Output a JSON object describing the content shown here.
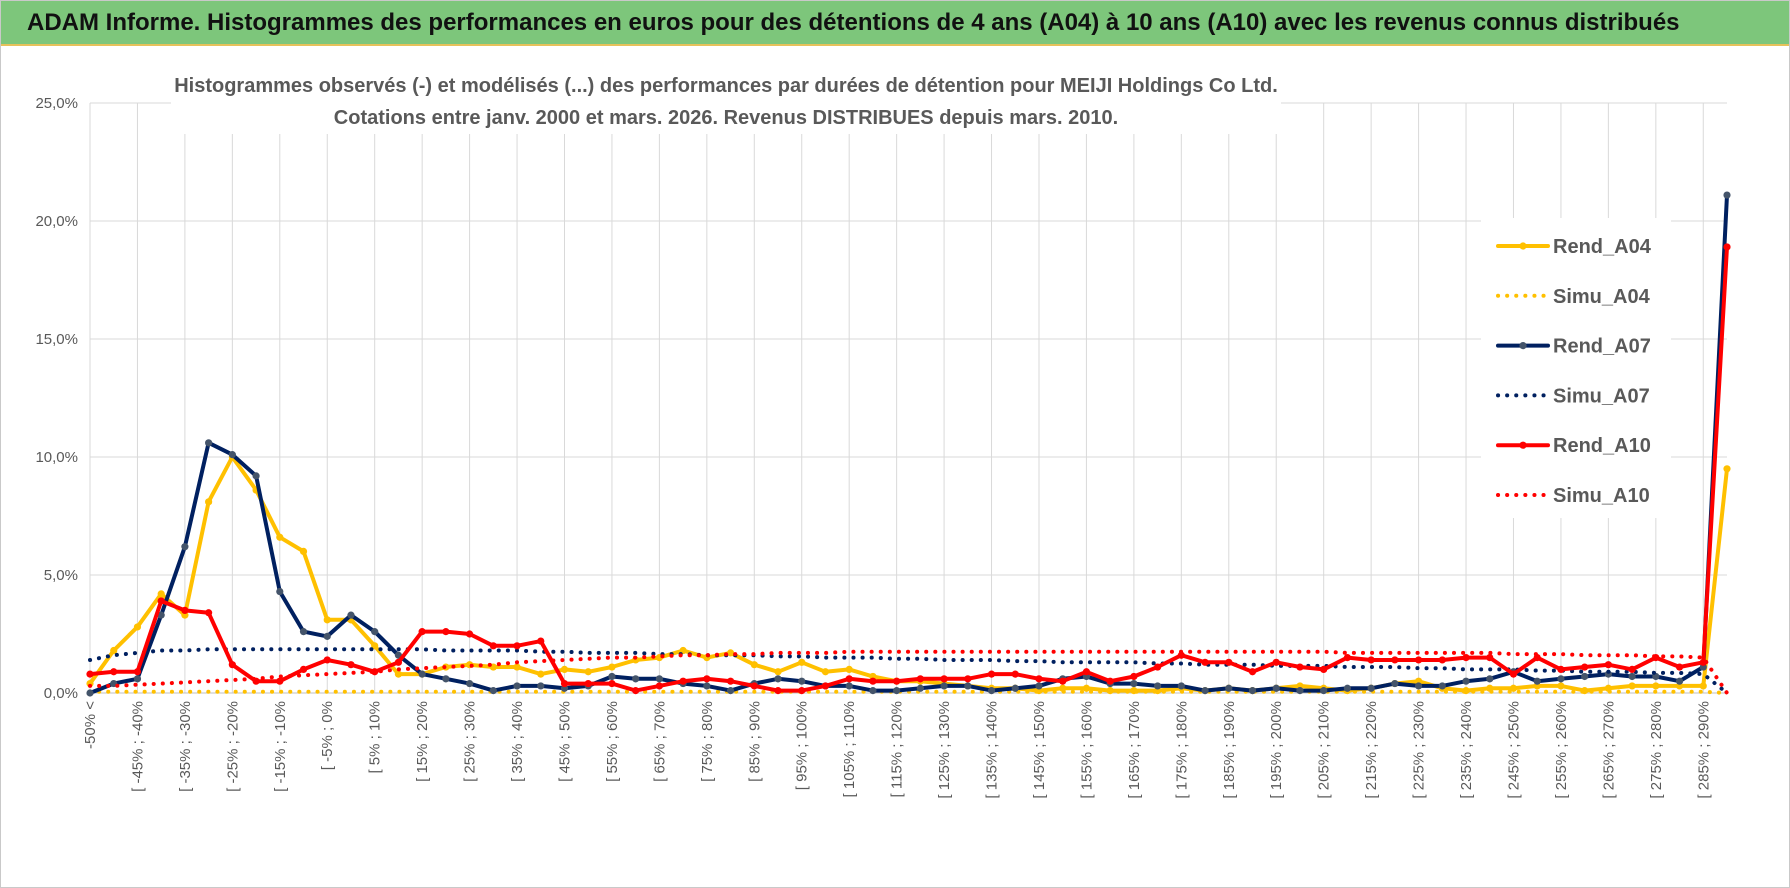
{
  "banner": "ADAM Informe. Histogrammes des performances en euros pour des détentions de 4 ans (A04) à 10 ans (A10) avec les revenus connus distribués",
  "chart_data": {
    "type": "line",
    "title": "Histogrammes observés (-) et modélisés (...) des performances par durées de détention pour MEIJI Holdings Co Ltd.",
    "subtitle": "Cotations entre janv. 2000 et mars. 2026. Revenus DISTRIBUES depuis mars. 2010.",
    "categories": [
      "-50% <",
      null,
      "[ -45% ; -40%",
      null,
      "[ -35% ; -30%",
      null,
      "[ -25% ; -20%",
      null,
      "[ -15% ; -10%",
      null,
      "[ -5% ; 0%",
      null,
      "[ 5% ; 10%",
      null,
      "[ 15% ; 20%",
      null,
      "[ 25% ; 30%",
      null,
      "[ 35% ; 40%",
      null,
      "[ 45% ; 50%",
      null,
      "[ 55% ; 60%",
      null,
      "[ 65% ; 70%",
      null,
      "[ 75% ; 80%",
      null,
      "[ 85% ; 90%",
      null,
      "[ 95% ; 100%",
      null,
      "[ 105% ; 110%",
      null,
      "[ 115% ; 120%",
      null,
      "[ 125% ; 130%",
      null,
      "[ 135% ; 140%",
      null,
      "[ 145% ; 150%",
      null,
      "[ 155% ; 160%",
      null,
      "[ 165% ; 170%",
      null,
      "[ 175% ; 180%",
      null,
      "[ 185% ; 190%",
      null,
      "[ 195% ; 200%",
      null,
      "[ 205% ; 210%",
      null,
      "[ 215% ; 220%",
      null,
      "[ 225% ; 230%",
      null,
      "[ 235% ; 240%",
      null,
      "[ 245% ; 250%",
      null,
      "[ 255% ; 260%",
      null,
      "[ 265% ; 270%",
      null,
      "[ 275% ; 280%",
      null,
      "[ 285% ; 290%",
      null
    ],
    "ylim": [
      0,
      25
    ],
    "yticks": [
      {
        "value": 0,
        "label": "0,0%"
      },
      {
        "value": 5,
        "label": "5,0%"
      },
      {
        "value": 10,
        "label": "10,0%"
      },
      {
        "value": 15,
        "label": "15,0%"
      },
      {
        "value": 20,
        "label": "20,0%"
      },
      {
        "value": 25,
        "label": "25,0%"
      }
    ],
    "grid": true,
    "legend": "right",
    "series": [
      {
        "name": "Rend_A04",
        "color": "#FFC000",
        "style": "solid",
        "markers": true,
        "values": [
          0.4,
          1.8,
          2.8,
          4.2,
          3.3,
          8.1,
          10.0,
          8.6,
          6.6,
          6.0,
          3.1,
          3.1,
          2.0,
          0.8,
          0.8,
          1.1,
          1.2,
          1.1,
          1.1,
          0.8,
          1.0,
          0.9,
          1.1,
          1.4,
          1.5,
          1.8,
          1.5,
          1.7,
          1.2,
          0.9,
          1.3,
          0.9,
          1.0,
          0.7,
          0.5,
          0.5,
          0.4,
          0.3,
          0.2,
          0.2,
          0.1,
          0.2,
          0.2,
          0.1,
          0.1,
          0.1,
          0.2,
          0.1,
          0.2,
          0.1,
          0.2,
          0.3,
          0.2,
          0.1,
          0.2,
          0.4,
          0.5,
          0.2,
          0.1,
          0.2,
          0.2,
          0.3,
          0.3,
          0.1,
          0.2,
          0.3,
          0.3,
          0.3,
          0.3,
          9.5
        ]
      },
      {
        "name": "Simu_A04",
        "color": "#FFC000",
        "style": "dotted",
        "markers": false,
        "values": [
          0.05,
          0.05,
          0.05,
          0.05,
          0.05,
          0.05,
          0.05,
          0.05,
          0.05,
          0.05,
          0.05,
          0.05,
          0.05,
          0.05,
          0.05,
          0.05,
          0.05,
          0.05,
          0.05,
          0.05,
          0.05,
          0.05,
          0.05,
          0.05,
          0.05,
          0.05,
          0.05,
          0.05,
          0.05,
          0.05,
          0.05,
          0.05,
          0.05,
          0.05,
          0.05,
          0.05,
          0.05,
          0.05,
          0.05,
          0.05,
          0.05,
          0.05,
          0.05,
          0.05,
          0.05,
          0.05,
          0.05,
          0.05,
          0.05,
          0.05,
          0.05,
          0.05,
          0.05,
          0.05,
          0.05,
          0.05,
          0.05,
          0.05,
          0.05,
          0.05,
          0.05,
          0.05,
          0.05,
          0.05,
          0.05,
          0.05,
          0.05,
          0.05,
          0.05,
          0.0
        ]
      },
      {
        "name": "Rend_A07",
        "color": "#002060",
        "marker": "#44546A",
        "style": "solid",
        "markers": true,
        "values": [
          0.0,
          0.4,
          0.6,
          3.3,
          6.2,
          10.6,
          10.1,
          9.2,
          4.3,
          2.6,
          2.4,
          3.3,
          2.6,
          1.6,
          0.8,
          0.6,
          0.4,
          0.1,
          0.3,
          0.3,
          0.2,
          0.3,
          0.7,
          0.6,
          0.6,
          0.4,
          0.3,
          0.1,
          0.4,
          0.6,
          0.5,
          0.3,
          0.3,
          0.1,
          0.1,
          0.2,
          0.3,
          0.3,
          0.1,
          0.2,
          0.3,
          0.6,
          0.7,
          0.4,
          0.4,
          0.3,
          0.3,
          0.1,
          0.2,
          0.1,
          0.2,
          0.1,
          0.1,
          0.2,
          0.2,
          0.4,
          0.3,
          0.3,
          0.5,
          0.6,
          0.9,
          0.5,
          0.6,
          0.7,
          0.8,
          0.7,
          0.7,
          0.5,
          1.1,
          21.1
        ]
      },
      {
        "name": "Simu_A07",
        "color": "#002060",
        "style": "dotted",
        "markers": false,
        "values": [
          1.4,
          1.6,
          1.7,
          1.8,
          1.8,
          1.85,
          1.85,
          1.85,
          1.85,
          1.85,
          1.85,
          1.85,
          1.85,
          1.85,
          1.85,
          1.8,
          1.8,
          1.8,
          1.8,
          1.75,
          1.75,
          1.7,
          1.7,
          1.7,
          1.65,
          1.65,
          1.6,
          1.6,
          1.6,
          1.55,
          1.55,
          1.5,
          1.5,
          1.5,
          1.45,
          1.45,
          1.4,
          1.4,
          1.4,
          1.35,
          1.35,
          1.3,
          1.3,
          1.3,
          1.3,
          1.25,
          1.25,
          1.2,
          1.2,
          1.2,
          1.15,
          1.15,
          1.15,
          1.1,
          1.1,
          1.1,
          1.05,
          1.05,
          1.0,
          1.0,
          1.0,
          0.95,
          0.95,
          0.9,
          0.9,
          0.9,
          0.85,
          0.85,
          0.8,
          0.0
        ]
      },
      {
        "name": "Rend_A10",
        "color": "#FF0000",
        "style": "solid",
        "markers": true,
        "values": [
          0.8,
          0.9,
          0.9,
          3.9,
          3.5,
          3.4,
          1.2,
          0.5,
          0.5,
          1.0,
          1.4,
          1.2,
          0.9,
          1.3,
          2.6,
          2.6,
          2.5,
          2.0,
          2.0,
          2.2,
          0.4,
          0.4,
          0.4,
          0.1,
          0.3,
          0.5,
          0.6,
          0.5,
          0.3,
          0.1,
          0.1,
          0.3,
          0.6,
          0.5,
          0.5,
          0.6,
          0.6,
          0.6,
          0.8,
          0.8,
          0.6,
          0.5,
          0.9,
          0.5,
          0.7,
          1.1,
          1.6,
          1.3,
          1.3,
          0.9,
          1.3,
          1.1,
          1.0,
          1.5,
          1.4,
          1.4,
          1.4,
          1.4,
          1.5,
          1.5,
          0.8,
          1.5,
          1.0,
          1.1,
          1.2,
          1.0,
          1.5,
          1.1,
          1.3,
          18.9
        ]
      },
      {
        "name": "Simu_A10",
        "color": "#FF0000",
        "style": "dotted",
        "markers": false,
        "values": [
          0.3,
          0.3,
          0.35,
          0.4,
          0.45,
          0.5,
          0.55,
          0.6,
          0.7,
          0.75,
          0.8,
          0.85,
          0.9,
          1.0,
          1.05,
          1.1,
          1.15,
          1.2,
          1.3,
          1.35,
          1.4,
          1.45,
          1.5,
          1.5,
          1.55,
          1.6,
          1.6,
          1.65,
          1.65,
          1.7,
          1.7,
          1.7,
          1.75,
          1.75,
          1.75,
          1.75,
          1.75,
          1.75,
          1.75,
          1.75,
          1.75,
          1.75,
          1.75,
          1.75,
          1.75,
          1.75,
          1.75,
          1.75,
          1.75,
          1.75,
          1.75,
          1.75,
          1.75,
          1.7,
          1.7,
          1.7,
          1.7,
          1.7,
          1.7,
          1.7,
          1.65,
          1.65,
          1.65,
          1.6,
          1.6,
          1.6,
          1.55,
          1.55,
          1.5,
          0.0
        ]
      }
    ]
  }
}
